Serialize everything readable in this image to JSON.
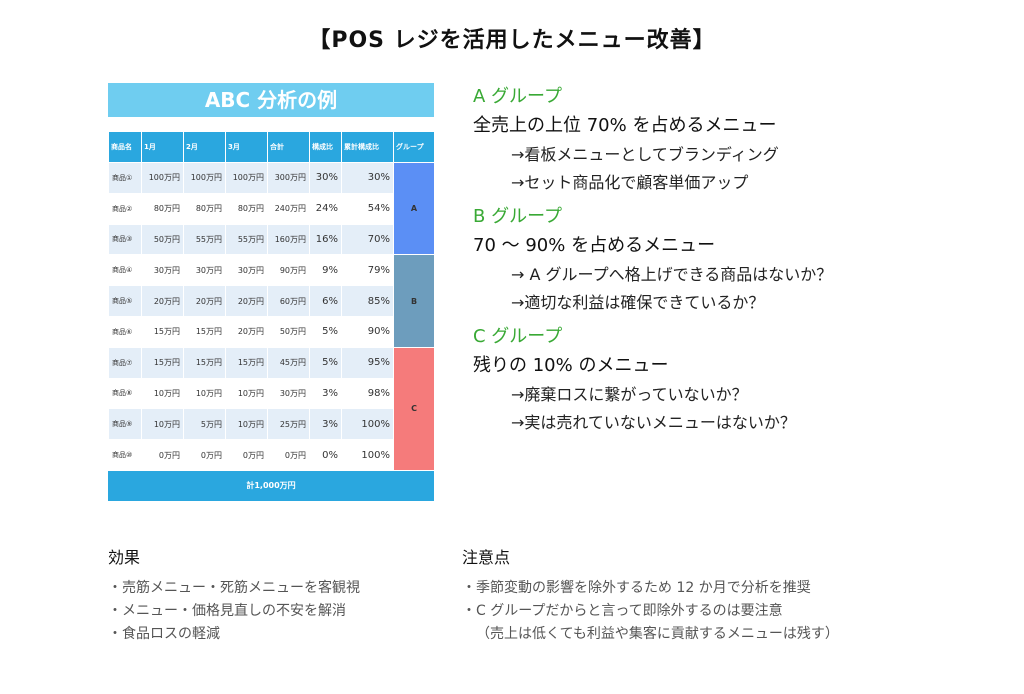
{
  "title": "【POS レジを活用したメニュー改善】",
  "table": {
    "title": "ABC 分析の例",
    "headers": [
      "商品名",
      "1月",
      "2月",
      "3月",
      "合計",
      "構成比",
      "累計構成比",
      "グループ"
    ],
    "rows": [
      {
        "name": "商品①",
        "m1": "100万円",
        "m2": "100万円",
        "m3": "100万円",
        "sum": "300万円",
        "ratio": "30%",
        "cum": "30%"
      },
      {
        "name": "商品②",
        "m1": "80万円",
        "m2": "80万円",
        "m3": "80万円",
        "sum": "240万円",
        "ratio": "24%",
        "cum": "54%"
      },
      {
        "name": "商品③",
        "m1": "50万円",
        "m2": "55万円",
        "m3": "55万円",
        "sum": "160万円",
        "ratio": "16%",
        "cum": "70%"
      },
      {
        "name": "商品④",
        "m1": "30万円",
        "m2": "30万円",
        "m3": "30万円",
        "sum": "90万円",
        "ratio": "9%",
        "cum": "79%"
      },
      {
        "name": "商品⑤",
        "m1": "20万円",
        "m2": "20万円",
        "m3": "20万円",
        "sum": "60万円",
        "ratio": "6%",
        "cum": "85%"
      },
      {
        "name": "商品⑥",
        "m1": "15万円",
        "m2": "15万円",
        "m3": "20万円",
        "sum": "50万円",
        "ratio": "5%",
        "cum": "90%"
      },
      {
        "name": "商品⑦",
        "m1": "15万円",
        "m2": "15万円",
        "m3": "15万円",
        "sum": "45万円",
        "ratio": "5%",
        "cum": "95%"
      },
      {
        "name": "商品⑧",
        "m1": "10万円",
        "m2": "10万円",
        "m3": "10万円",
        "sum": "30万円",
        "ratio": "3%",
        "cum": "98%"
      },
      {
        "name": "商品⑨",
        "m1": "10万円",
        "m2": "5万円",
        "m3": "10万円",
        "sum": "25万円",
        "ratio": "3%",
        "cum": "100%"
      },
      {
        "name": "商品⑩",
        "m1": "0万円",
        "m2": "0万円",
        "m3": "0万円",
        "sum": "0万円",
        "ratio": "0%",
        "cum": "100%"
      }
    ],
    "group_labels": {
      "a": "A",
      "b": "B",
      "c": "C"
    },
    "total": "計1,000万円"
  },
  "groups": [
    {
      "title": "A グループ",
      "head": "全売上の上位 70% を占めるメニュー",
      "bullets": [
        "→看板メニューとしてブランディング",
        "→セット商品化で顧客単価アップ"
      ]
    },
    {
      "title": "B グループ",
      "head": "70 ～ 90% を占めるメニュー",
      "bullets": [
        "→ A グループへ格上げできる商品はないか？",
        "→適切な利益は確保できているか？"
      ]
    },
    {
      "title": "C グループ",
      "head": "残りの 10% のメニュー",
      "bullets": [
        "→廃棄ロスに繋がっていないか？",
        "→実は売れていないメニューはないか？"
      ]
    }
  ],
  "effects": {
    "title": "効果",
    "items": [
      "・売筋メニュー・死筋メニューを客観視",
      "・メニュー・価格見直しの不安を解消",
      "・食品ロスの軽減"
    ]
  },
  "cautions": {
    "title": "注意点",
    "items": [
      "・季節変動の影響を除外するため 12 か月で分析を推奨",
      "・C グループだからと言って即除外するのは要注意",
      "（売上は低くても利益や集客に貢献するメニューは残す）"
    ]
  },
  "colors": {
    "accent_green": "#39a935",
    "header_blue": "#2aa7df",
    "title_blue": "#6fcdf0",
    "group_a": "#5b8ff5",
    "group_b": "#6d9dbd",
    "group_c": "#f57b7b"
  }
}
